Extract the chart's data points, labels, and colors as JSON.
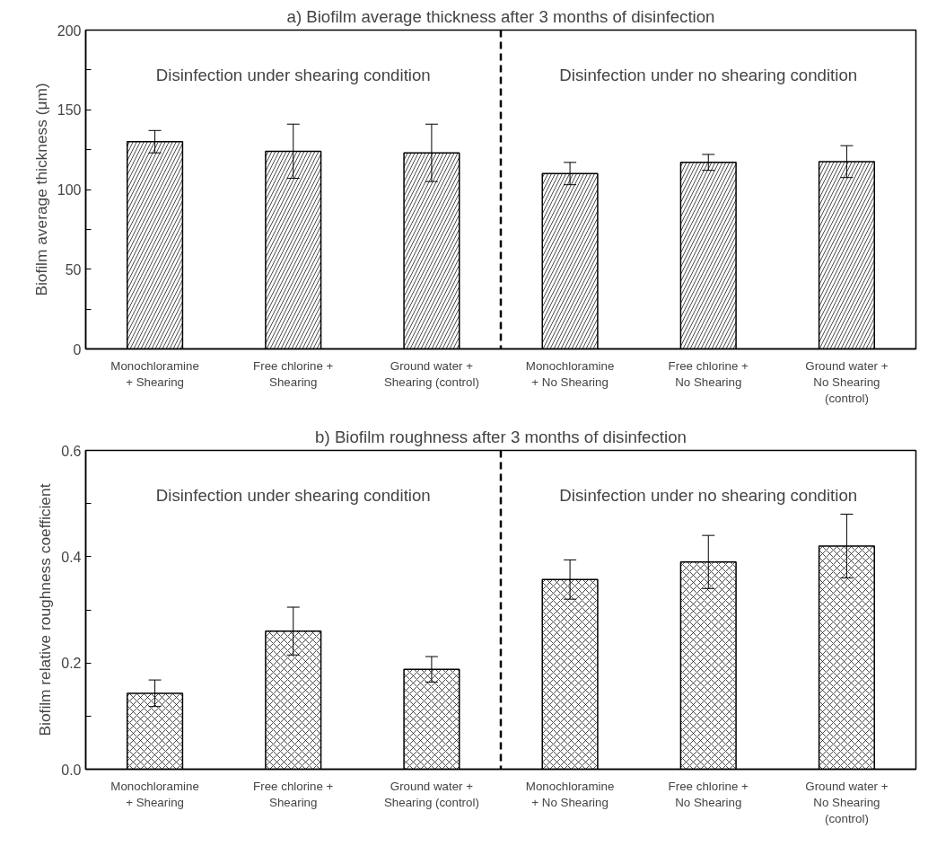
{
  "chart_data": [
    {
      "type": "bar",
      "title": "a) Biofilm average thickness after 3 months of disinfection",
      "ylabel": "Biofilm average thickness (μm)",
      "categories": [
        "Monochloramine\n+ Shearing",
        "Free chlorine +\nShearing",
        "Ground water +\nShearing (control)",
        "Monochloramine\n+ No Shearing",
        "Free chlorine +\nNo Shearing",
        "Ground water +\nNo Shearing\n(control)"
      ],
      "series": [
        {
          "color": "#000000",
          "values": [
            130,
            124,
            123,
            110,
            117,
            117.5
          ],
          "errors": [
            7,
            17,
            18,
            7,
            5,
            10
          ]
        }
      ],
      "ylim": [
        0,
        200
      ],
      "yticks": [
        0,
        {
          "value": 25,
          "label": null
        },
        50,
        {
          "value": 75,
          "label": null
        },
        100,
        {
          "value": 125,
          "label": null
        },
        150,
        {
          "value": 175,
          "label": null
        },
        200
      ],
      "annotations": [
        "Disinfection under shearing condition",
        "Disinfection under no shearing condition"
      ],
      "grid": false
    },
    {
      "type": "bar",
      "title": "b) Biofilm roughness after 3 months of disinfection",
      "ylabel": "Biofilm relative roughness coefficient",
      "categories": [
        "Monochloramine\n+ Shearing",
        "Free chlorine +\nShearing",
        "Ground water +\nShearing (control)",
        "Monochloramine\n+ No Shearing",
        "Free chlorine +\nNo Shearing",
        "Ground water +\nNo Shearing\n(control)"
      ],
      "series": [
        {
          "color": "#000000",
          "values": [
            0.143,
            0.26,
            0.188,
            0.357,
            0.39,
            0.42
          ],
          "errors": [
            0.025,
            0.045,
            0.024,
            0.037,
            0.05,
            0.06
          ]
        }
      ],
      "ylim": [
        0,
        0.6
      ],
      "yticks": [
        {
          "value": 0,
          "label": "0.0"
        },
        {
          "value": 0.1,
          "label": null
        },
        0.2,
        {
          "value": 0.3,
          "label": null
        },
        0.4,
        {
          "value": 0.5,
          "label": null
        },
        0.6
      ],
      "annotations": [
        "Disinfection under shearing condition",
        "Disinfection under no shearing condition"
      ],
      "grid": false
    }
  ]
}
